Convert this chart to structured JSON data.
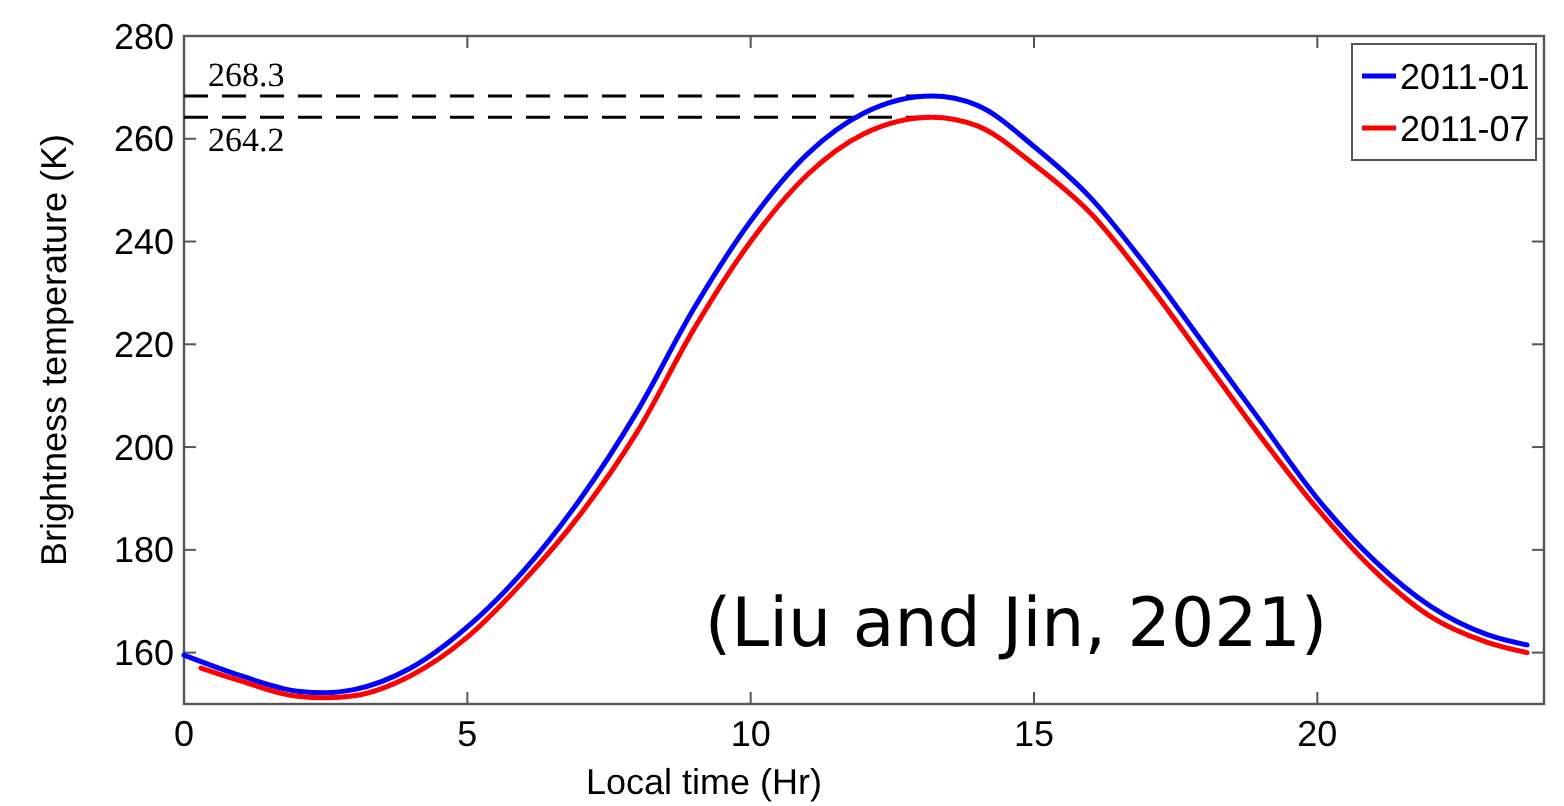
{
  "chart_data": {
    "type": "line",
    "xlabel": "Local time (Hr)",
    "ylabel": "Brightness temperature (K)",
    "xlim": [
      0,
      24
    ],
    "ylim": [
      150,
      280
    ],
    "xticks": [
      0,
      5,
      10,
      15,
      20
    ],
    "yticks": [
      160,
      180,
      200,
      220,
      240,
      260,
      280
    ],
    "grid": false,
    "legend": "top right",
    "marker": "none",
    "line_style": "solid",
    "series": [
      {
        "name": "2011-01",
        "color": "#0000ff",
        "x": [
          0,
          1,
          2,
          2.5,
          3,
          4,
          5,
          6,
          7,
          8,
          9,
          10,
          11,
          12,
          13.2,
          14,
          15,
          16,
          17,
          18,
          19,
          20,
          21,
          22,
          23,
          23.7
        ],
        "values": [
          159.5,
          155.5,
          152.5,
          152.2,
          152.8,
          157,
          165,
          176,
          190,
          207,
          227,
          244,
          257,
          265,
          268.3,
          266.5,
          258.5,
          248.5,
          235,
          220,
          205,
          190,
          178,
          169,
          163.5,
          161.5
        ]
      },
      {
        "name": "2011-07",
        "color": "#ff0000",
        "x": [
          0.3,
          1,
          2,
          2.5,
          3,
          4,
          5,
          6,
          7,
          8,
          9,
          10,
          11,
          12,
          13.2,
          14,
          15,
          16,
          17,
          18,
          19,
          20,
          21,
          22,
          23,
          23.7
        ],
        "values": [
          157,
          154.5,
          151.5,
          151.2,
          151.6,
          155.5,
          163,
          174,
          187,
          203,
          223,
          240,
          253,
          261,
          264.2,
          262.5,
          255,
          245.5,
          232,
          217,
          202,
          188,
          176,
          167,
          162,
          160
        ]
      }
    ],
    "ref_lines": [
      {
        "axis": "y",
        "value": 268.3,
        "label": "268.3",
        "line_style": "dashed",
        "color": "#000000"
      },
      {
        "axis": "y",
        "value": 264.2,
        "label": "264.2",
        "line_style": "dashed",
        "color": "#000000"
      }
    ],
    "annotations": [
      "(Liu and Jin, 2021)"
    ]
  }
}
